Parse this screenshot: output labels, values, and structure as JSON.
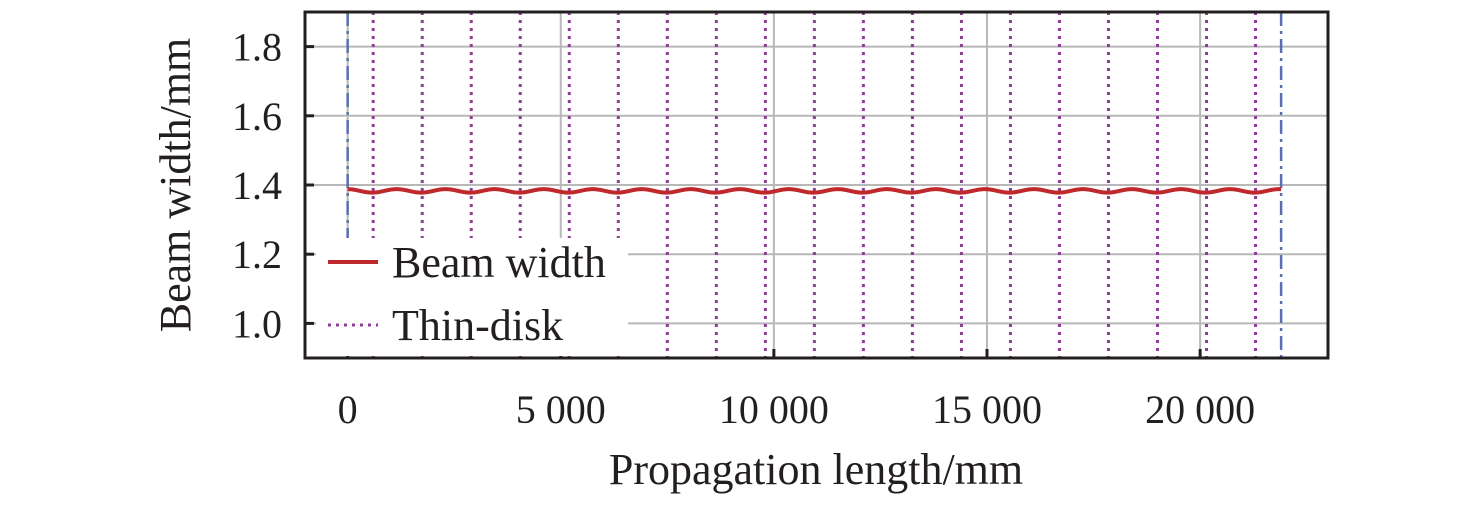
{
  "chart_data": {
    "type": "line",
    "xlabel": "Propagation length/mm",
    "ylabel": "Beam width/mm",
    "xlim": [
      -1000,
      23000
    ],
    "ylim": [
      0.9,
      1.9
    ],
    "x_ticks": [
      {
        "value": 0,
        "label": "0"
      },
      {
        "value": 5000,
        "label": "5 000"
      },
      {
        "value": 10000,
        "label": "10 000"
      },
      {
        "value": 15000,
        "label": "15 000"
      },
      {
        "value": 20000,
        "label": "20 000"
      }
    ],
    "y_ticks": [
      {
        "value": 1.0,
        "label": "1.0"
      },
      {
        "value": 1.2,
        "label": "1.2"
      },
      {
        "value": 1.4,
        "label": "1.4"
      },
      {
        "value": 1.6,
        "label": "1.6"
      },
      {
        "value": 1.8,
        "label": "1.8"
      }
    ],
    "grid": true,
    "legend_position": "bottom-left",
    "series": [
      {
        "name": "Beam width",
        "style": "solid",
        "color": "#c0292b",
        "x_range": [
          0,
          21900
        ],
        "period": 1150,
        "value_max": 1.388,
        "value_min": 1.378
      },
      {
        "name": "Thin-disk",
        "style": "dotted-vertical",
        "color": "#8e3c97",
        "x": [
          600,
          1750,
          2900,
          4050,
          5200,
          6350,
          7500,
          8650,
          9800,
          10950,
          12100,
          13250,
          14400,
          15550,
          16700,
          17850,
          19000,
          20150,
          21300
        ]
      }
    ],
    "boundaries": {
      "style": "dash-dot-vertical",
      "color": "#5a6fb0",
      "x": [
        0,
        21900
      ]
    }
  }
}
